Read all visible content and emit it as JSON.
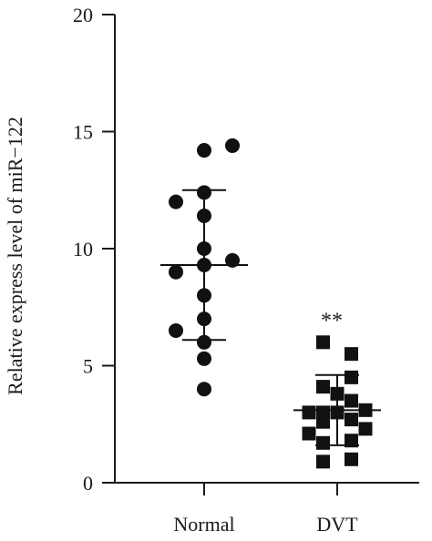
{
  "chart_data": {
    "type": "scatter",
    "title": "",
    "xlabel": "",
    "ylabel": "Relative express level of miR−122",
    "ylim": [
      0,
      20
    ],
    "yticks": [
      0,
      5,
      10,
      15,
      20
    ],
    "categories": [
      "Normal",
      "DVT"
    ],
    "grid": false,
    "legend": "none",
    "series": [
      {
        "category": "Normal",
        "marker": "circle",
        "points": [
          {
            "offset": 0,
            "y": 14.2
          },
          {
            "offset": 1,
            "y": 14.4
          },
          {
            "offset": -1,
            "y": 12.0
          },
          {
            "offset": 0,
            "y": 12.4
          },
          {
            "offset": 0,
            "y": 11.4
          },
          {
            "offset": 0,
            "y": 10.0
          },
          {
            "offset": -1,
            "y": 9.0
          },
          {
            "offset": 0,
            "y": 9.3
          },
          {
            "offset": 1,
            "y": 9.5
          },
          {
            "offset": 0,
            "y": 8.0
          },
          {
            "offset": 0,
            "y": 7.0
          },
          {
            "offset": -1,
            "y": 6.5
          },
          {
            "offset": 0,
            "y": 6.0
          },
          {
            "offset": 0,
            "y": 5.3
          },
          {
            "offset": 0,
            "y": 4.0
          }
        ],
        "mean": 9.3,
        "sd_upper": 12.5,
        "sd_lower": 6.1
      },
      {
        "category": "DVT",
        "marker": "square",
        "points": [
          {
            "offset": -0.5,
            "y": 6.0
          },
          {
            "offset": 0.5,
            "y": 5.5
          },
          {
            "offset": 0.5,
            "y": 4.5
          },
          {
            "offset": -0.5,
            "y": 4.1
          },
          {
            "offset": 0,
            "y": 3.8
          },
          {
            "offset": 0.5,
            "y": 3.5
          },
          {
            "offset": -0.5,
            "y": 3.0
          },
          {
            "offset": 0,
            "y": 3.0
          },
          {
            "offset": 1,
            "y": 3.1
          },
          {
            "offset": -1,
            "y": 3.0
          },
          {
            "offset": 0.5,
            "y": 2.7
          },
          {
            "offset": -0.5,
            "y": 2.6
          },
          {
            "offset": 1,
            "y": 2.3
          },
          {
            "offset": -1,
            "y": 2.1
          },
          {
            "offset": -0.5,
            "y": 1.7
          },
          {
            "offset": 0.5,
            "y": 1.8
          },
          {
            "offset": -0.5,
            "y": 0.9
          },
          {
            "offset": 0.5,
            "y": 1.0
          }
        ],
        "mean": 3.1,
        "sd_upper": 4.6,
        "sd_lower": 1.6
      }
    ],
    "annotations": [
      {
        "category": "DVT",
        "text": "**",
        "y": 7.1
      }
    ],
    "colors": {
      "marker": "#111111",
      "axis": "#1a1a1a"
    }
  }
}
